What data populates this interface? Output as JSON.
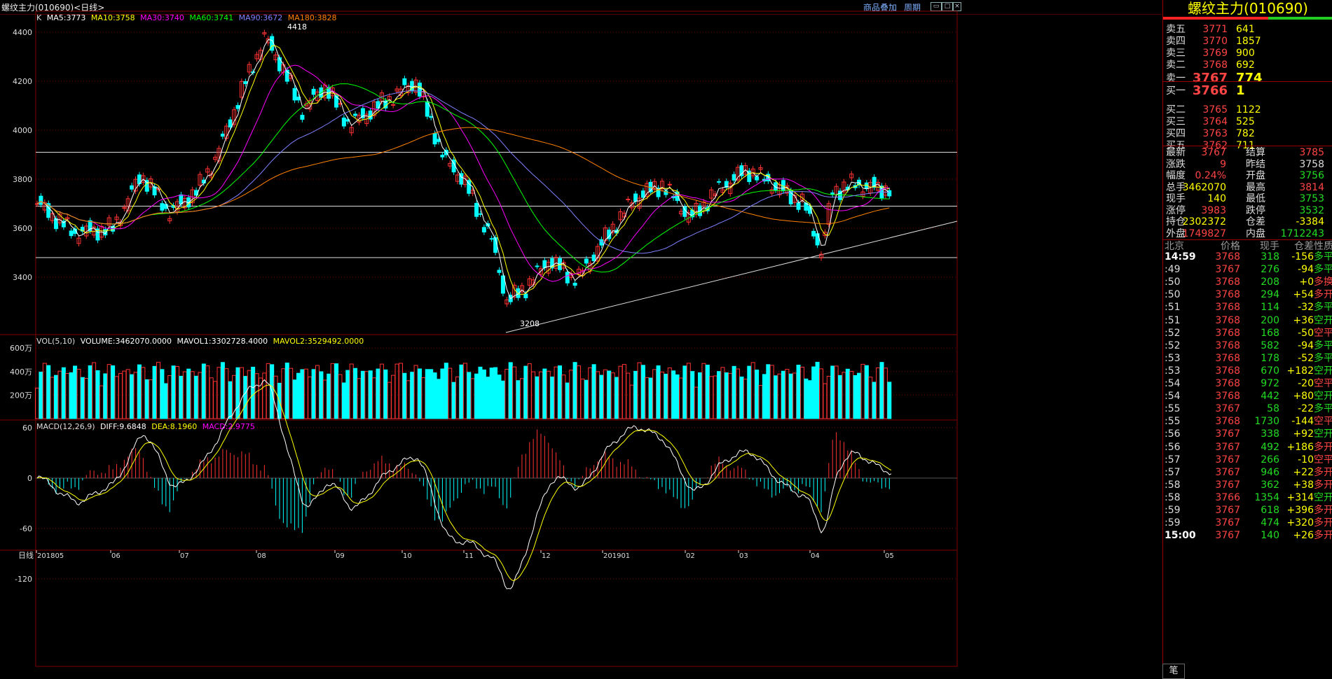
{
  "window": {
    "title": "螺纹主力(010690)<日线>",
    "links": [
      "商品叠加",
      "周期"
    ]
  },
  "main_panel": {
    "indicator_label": "K",
    "ma": [
      {
        "label": "MA5:3773",
        "color": "#ffffff"
      },
      {
        "label": "MA10:3758",
        "color": "#ffff00"
      },
      {
        "label": "MA30:3740",
        "color": "#ff00ff"
      },
      {
        "label": "MA60:3741",
        "color": "#00ff00"
      },
      {
        "label": "MA90:3672",
        "color": "#8080ff"
      },
      {
        "label": "MA180:3828",
        "color": "#ff8000"
      }
    ],
    "y_ticks": [
      "4400",
      "4200",
      "4000",
      "3800",
      "3600",
      "3400"
    ],
    "high_label": "4418",
    "low_label": "3208"
  },
  "volume_panel": {
    "label": "VOL(5,10)",
    "stats": [
      {
        "label": "VOLUME:3462070.0000",
        "color": "#ffffff"
      },
      {
        "label": "MAVOL1:3302728.4000",
        "color": "#ffffff"
      },
      {
        "label": "MAVOL2:3529492.0000",
        "color": "#ffff00"
      }
    ],
    "y_ticks": [
      "600万",
      "400万",
      "200万"
    ]
  },
  "macd_panel": {
    "label": "MACD(12,26,9)",
    "stats": [
      {
        "label": "DIFF:9.6848",
        "color": "#ffffff"
      },
      {
        "label": "DEA:8.1960",
        "color": "#ffff00"
      },
      {
        "label": "MACD:2.9775",
        "color": "#ff00ff"
      }
    ],
    "y_ticks": [
      "60",
      "0",
      "-60",
      "-120"
    ]
  },
  "x_axis": {
    "period_label": "日线",
    "labels": [
      "201805",
      "06",
      "07",
      "08",
      "09",
      "10",
      "11",
      "12",
      "201901",
      "02",
      "03",
      "04",
      "05"
    ]
  },
  "colors": {
    "up": "#ff3232",
    "down": "#00ffff",
    "grid": "#800000"
  },
  "side": {
    "instrument": "螺纹主力(010690)",
    "asks": [
      {
        "label": "卖五",
        "price": "3771",
        "vol": "641"
      },
      {
        "label": "卖四",
        "price": "3770",
        "vol": "1857"
      },
      {
        "label": "卖三",
        "price": "3769",
        "vol": "900"
      },
      {
        "label": "卖二",
        "price": "3768",
        "vol": "692"
      },
      {
        "label": "卖一",
        "price": "3767",
        "vol": "774"
      }
    ],
    "bids": [
      {
        "label": "买一",
        "price": "3766",
        "vol": "1"
      },
      {
        "label": "买二",
        "price": "3765",
        "vol": "1122"
      },
      {
        "label": "买三",
        "price": "3764",
        "vol": "525"
      },
      {
        "label": "买四",
        "price": "3763",
        "vol": "782"
      },
      {
        "label": "买五",
        "price": "3762",
        "vol": "711"
      }
    ],
    "quote": [
      {
        "l1": "最新",
        "v1": "3767",
        "c1": "#ff4444",
        "l2": "结算",
        "v2": "3785",
        "c2": "#ff4444"
      },
      {
        "l1": "涨跌",
        "v1": "9",
        "c1": "#ff4444",
        "l2": "昨结",
        "v2": "3758",
        "c2": "#dddddd"
      },
      {
        "l1": "幅度",
        "v1": "0.24%",
        "c1": "#ff4444",
        "l2": "开盘",
        "v2": "3756",
        "c2": "#22dd22"
      },
      {
        "l1": "总手",
        "v1": "3462070",
        "c1": "#ffff00",
        "l2": "最高",
        "v2": "3814",
        "c2": "#ff4444"
      },
      {
        "l1": "现手",
        "v1": "140",
        "c1": "#ffff00",
        "l2": "最低",
        "v2": "3753",
        "c2": "#22dd22"
      },
      {
        "l1": "涨停",
        "v1": "3983",
        "c1": "#ff4444",
        "l2": "跌停",
        "v2": "3532",
        "c2": "#22dd22"
      },
      {
        "l1": "持仓",
        "v1": "2302372",
        "c1": "#ffff00",
        "l2": "仓差",
        "v2": "-3384",
        "c2": "#ffff00"
      },
      {
        "l1": "外盘",
        "v1": "1749827",
        "c1": "#ff4444",
        "l2": "内盘",
        "v2": "1712243",
        "c2": "#22dd22"
      }
    ],
    "ticks_header": [
      "北京",
      "价格",
      "现手",
      "仓差",
      "性质"
    ],
    "ticks": [
      {
        "t": "14:59",
        "p": "3768",
        "v": "318",
        "d": "-156",
        "n": "多平",
        "nc": "#22dd22"
      },
      {
        "t": ":49",
        "p": "3767",
        "v": "276",
        "d": "-94",
        "n": "多平",
        "nc": "#22dd22"
      },
      {
        "t": ":50",
        "p": "3768",
        "v": "208",
        "d": "+0",
        "n": "多换",
        "nc": "#ff4444"
      },
      {
        "t": ":50",
        "p": "3768",
        "v": "294",
        "d": "+54",
        "n": "多开",
        "nc": "#ff4444"
      },
      {
        "t": ":51",
        "p": "3768",
        "v": "114",
        "d": "-32",
        "n": "多平",
        "nc": "#22dd22"
      },
      {
        "t": ":51",
        "p": "3768",
        "v": "200",
        "d": "+36",
        "n": "空开",
        "nc": "#22dd22"
      },
      {
        "t": ":52",
        "p": "3768",
        "v": "168",
        "d": "-50",
        "n": "空平",
        "nc": "#ff4444"
      },
      {
        "t": ":52",
        "p": "3768",
        "v": "582",
        "d": "-94",
        "n": "多平",
        "nc": "#22dd22"
      },
      {
        "t": ":53",
        "p": "3768",
        "v": "178",
        "d": "-52",
        "n": "多平",
        "nc": "#22dd22"
      },
      {
        "t": ":53",
        "p": "3768",
        "v": "670",
        "d": "+182",
        "n": "空开",
        "nc": "#22dd22"
      },
      {
        "t": ":54",
        "p": "3768",
        "v": "972",
        "d": "-20",
        "n": "空平",
        "nc": "#ff4444"
      },
      {
        "t": ":54",
        "p": "3768",
        "v": "442",
        "d": "+80",
        "n": "空开",
        "nc": "#22dd22"
      },
      {
        "t": ":55",
        "p": "3767",
        "v": "58",
        "d": "-22",
        "n": "多平",
        "nc": "#22dd22"
      },
      {
        "t": ":55",
        "p": "3768",
        "v": "1730",
        "d": "-144",
        "n": "空平",
        "nc": "#ff4444"
      },
      {
        "t": ":56",
        "p": "3767",
        "v": "338",
        "d": "+92",
        "n": "空开",
        "nc": "#22dd22"
      },
      {
        "t": ":56",
        "p": "3767",
        "v": "492",
        "d": "+186",
        "n": "多开",
        "nc": "#ff4444"
      },
      {
        "t": ":57",
        "p": "3767",
        "v": "266",
        "d": "-10",
        "n": "空平",
        "nc": "#ff4444"
      },
      {
        "t": ":57",
        "p": "3767",
        "v": "946",
        "d": "+22",
        "n": "多开",
        "nc": "#ff4444"
      },
      {
        "t": ":58",
        "p": "3767",
        "v": "362",
        "d": "+38",
        "n": "多开",
        "nc": "#ff4444"
      },
      {
        "t": ":58",
        "p": "3766",
        "v": "1354",
        "d": "+314",
        "n": "空开",
        "nc": "#22dd22"
      },
      {
        "t": ":59",
        "p": "3767",
        "v": "618",
        "d": "+396",
        "n": "多开",
        "nc": "#ff4444"
      },
      {
        "t": ":59",
        "p": "3767",
        "v": "474",
        "d": "+320",
        "n": "多开",
        "nc": "#ff4444"
      },
      {
        "t": "15:00",
        "p": "3767",
        "v": "140",
        "d": "+26",
        "n": "多开",
        "nc": "#ff4444"
      }
    ],
    "bottom_tab": "笔"
  }
}
